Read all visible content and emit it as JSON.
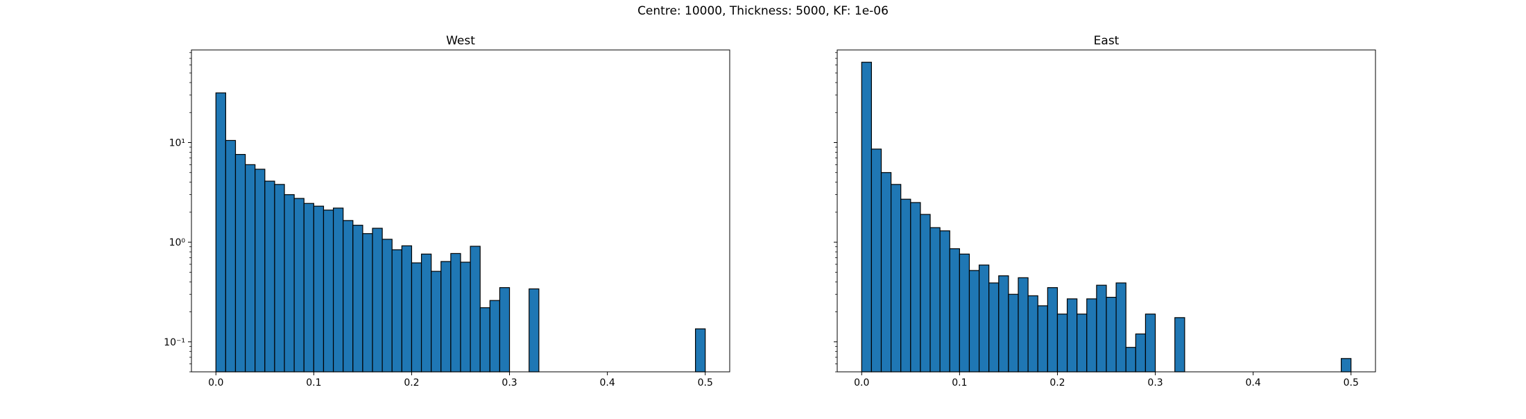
{
  "figure": {
    "suptitle": "Centre: 10000, Thickness: 5000, KF: 1e-06"
  },
  "chart_data": [
    {
      "type": "bar",
      "title": "West",
      "xlabel": "",
      "ylabel": "",
      "yscale": "log",
      "xlim": [
        -0.025,
        0.525
      ],
      "ylim": [
        0.05,
        85
      ],
      "bar_width": 0.01,
      "bar_color": "#1f77b4",
      "edge_color": "#000000",
      "xticks": [
        0.0,
        0.1,
        0.2,
        0.3,
        0.4,
        0.5
      ],
      "xtick_labels": [
        "0.0",
        "0.1",
        "0.2",
        "0.3",
        "0.4",
        "0.5"
      ],
      "yticks": [
        0.1,
        1,
        10
      ],
      "ytick_labels": [
        "10⁻¹",
        "10⁰",
        "10¹"
      ],
      "x": [
        0.0,
        0.01,
        0.02,
        0.03,
        0.04,
        0.05,
        0.06,
        0.07,
        0.08,
        0.09,
        0.1,
        0.11,
        0.12,
        0.13,
        0.14,
        0.15,
        0.16,
        0.17,
        0.18,
        0.19,
        0.2,
        0.21,
        0.22,
        0.23,
        0.24,
        0.25,
        0.26,
        0.27,
        0.28,
        0.29,
        0.3,
        0.32,
        0.49
      ],
      "values": [
        31.5,
        10.5,
        7.6,
        6.0,
        5.4,
        4.1,
        3.8,
        3.0,
        2.75,
        2.45,
        2.3,
        2.1,
        2.2,
        1.65,
        1.48,
        1.22,
        1.38,
        1.07,
        0.84,
        0.92,
        0.62,
        0.76,
        0.51,
        0.64,
        0.77,
        0.63,
        0.91,
        0.22,
        0.26,
        0.35,
        0.0,
        0.34,
        0.135
      ],
      "grid": false
    },
    {
      "type": "bar",
      "title": "East",
      "xlabel": "",
      "ylabel": "",
      "yscale": "log",
      "xlim": [
        -0.025,
        0.525
      ],
      "ylim": [
        0.05,
        85
      ],
      "bar_width": 0.01,
      "bar_color": "#1f77b4",
      "edge_color": "#000000",
      "xticks": [
        0.0,
        0.1,
        0.2,
        0.3,
        0.4,
        0.5
      ],
      "xtick_labels": [
        "0.0",
        "0.1",
        "0.2",
        "0.3",
        "0.4",
        "0.5"
      ],
      "yticks": [
        0.1,
        1,
        10
      ],
      "ytick_labels": [
        "",
        "",
        ""
      ],
      "x": [
        0.0,
        0.01,
        0.02,
        0.03,
        0.04,
        0.05,
        0.06,
        0.07,
        0.08,
        0.09,
        0.1,
        0.11,
        0.12,
        0.13,
        0.14,
        0.15,
        0.16,
        0.17,
        0.18,
        0.19,
        0.2,
        0.21,
        0.22,
        0.23,
        0.24,
        0.25,
        0.26,
        0.27,
        0.28,
        0.29,
        0.3,
        0.32,
        0.49
      ],
      "values": [
        64.0,
        8.6,
        5.0,
        3.8,
        2.7,
        2.5,
        1.9,
        1.4,
        1.3,
        0.86,
        0.76,
        0.52,
        0.59,
        0.39,
        0.46,
        0.3,
        0.44,
        0.29,
        0.23,
        0.35,
        0.19,
        0.27,
        0.19,
        0.27,
        0.37,
        0.28,
        0.39,
        0.088,
        0.12,
        0.19,
        0.0,
        0.175,
        0.068
      ],
      "grid": false
    }
  ]
}
